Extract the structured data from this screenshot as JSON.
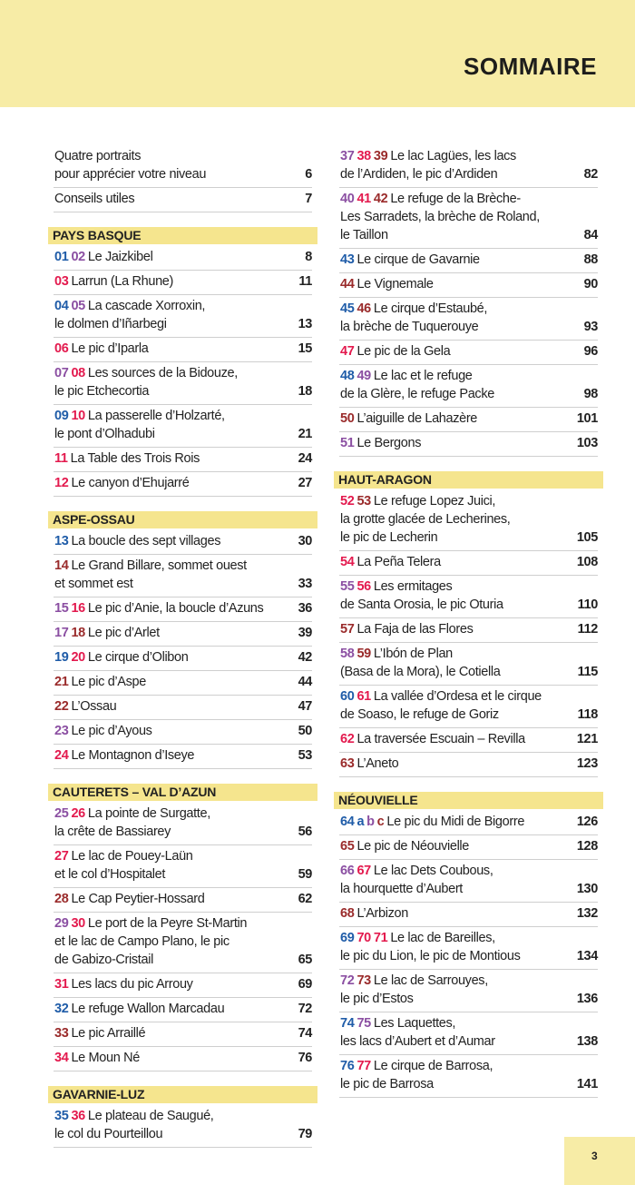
{
  "header": {
    "title": "SOMMAIRE"
  },
  "colors": {
    "blue": "#1f5ca8",
    "pink": "#e31a4e",
    "violet": "#8b4fa2",
    "red": "#9a2b2b",
    "band": "#f7eca6",
    "section": "#f5e58e"
  },
  "page_number": "3",
  "columns": [
    [
      {
        "type": "entry",
        "nums": [],
        "title": "Quatre portraits\npour apprécier votre niveau",
        "page": "6"
      },
      {
        "type": "entry",
        "nums": [],
        "title": "Conseils utiles",
        "page": "7"
      },
      {
        "type": "section",
        "label": "PAYS BASQUE"
      },
      {
        "type": "entry",
        "nums": [
          [
            "01",
            "blue"
          ],
          [
            "02",
            "violet"
          ]
        ],
        "title": "Le Jaizkibel",
        "page": "8"
      },
      {
        "type": "entry",
        "nums": [
          [
            "03",
            "pink"
          ]
        ],
        "title": "Larrun (La Rhune)",
        "page": "11"
      },
      {
        "type": "entry",
        "nums": [
          [
            "04",
            "blue"
          ],
          [
            "05",
            "violet"
          ]
        ],
        "title": "La cascade Xorroxin,\nle dolmen d’Iñarbegi",
        "page": "13"
      },
      {
        "type": "entry",
        "nums": [
          [
            "06",
            "pink"
          ]
        ],
        "title": "Le pic d’Iparla",
        "page": "15"
      },
      {
        "type": "entry",
        "nums": [
          [
            "07",
            "violet"
          ],
          [
            "08",
            "pink"
          ]
        ],
        "title": "Les sources de la Bidouze,\nle pic Etchecortia",
        "page": "18"
      },
      {
        "type": "entry",
        "nums": [
          [
            "09",
            "blue"
          ],
          [
            "10",
            "pink"
          ]
        ],
        "title": "La passerelle d’Holzarté,\nle pont d’Olhadubi",
        "page": "21"
      },
      {
        "type": "entry",
        "nums": [
          [
            "11",
            "pink"
          ]
        ],
        "title": "La Table des Trois Rois",
        "page": "24"
      },
      {
        "type": "entry",
        "nums": [
          [
            "12",
            "pink"
          ]
        ],
        "title": "Le canyon d’Ehujarré",
        "page": "27"
      },
      {
        "type": "section",
        "label": "ASPE-OSSAU"
      },
      {
        "type": "entry",
        "nums": [
          [
            "13",
            "blue"
          ]
        ],
        "title": "La boucle des sept villages",
        "page": "30"
      },
      {
        "type": "entry",
        "nums": [
          [
            "14",
            "red"
          ]
        ],
        "title": "Le Grand Billare, sommet ouest\net sommet est",
        "page": "33"
      },
      {
        "type": "entry",
        "nums": [
          [
            "15",
            "violet"
          ],
          [
            "16",
            "pink"
          ]
        ],
        "title": "Le pic d’Anie, la boucle d’Azuns",
        "page": "36"
      },
      {
        "type": "entry",
        "nums": [
          [
            "17",
            "violet"
          ],
          [
            "18",
            "red"
          ]
        ],
        "title": "Le pic d’Arlet",
        "page": "39"
      },
      {
        "type": "entry",
        "nums": [
          [
            "19",
            "blue"
          ],
          [
            "20",
            "pink"
          ]
        ],
        "title": "Le cirque d’Olibon",
        "page": "42"
      },
      {
        "type": "entry",
        "nums": [
          [
            "21",
            "red"
          ]
        ],
        "title": "Le pic d’Aspe",
        "page": "44"
      },
      {
        "type": "entry",
        "nums": [
          [
            "22",
            "red"
          ]
        ],
        "title": "L’Ossau",
        "page": "47"
      },
      {
        "type": "entry",
        "nums": [
          [
            "23",
            "violet"
          ]
        ],
        "title": "Le pic d’Ayous",
        "page": "50"
      },
      {
        "type": "entry",
        "nums": [
          [
            "24",
            "pink"
          ]
        ],
        "title": "Le Montagnon d’Iseye",
        "page": "53"
      },
      {
        "type": "section",
        "label": "CAUTERETS – VAL D’AZUN"
      },
      {
        "type": "entry",
        "nums": [
          [
            "25",
            "violet"
          ],
          [
            "26",
            "pink"
          ]
        ],
        "title": "La pointe de Surgatte,\nla crête de Bassiarey",
        "page": "56"
      },
      {
        "type": "entry",
        "nums": [
          [
            "27",
            "pink"
          ]
        ],
        "title": "Le lac de Pouey-Laün\net le col d’Hospitalet",
        "page": "59"
      },
      {
        "type": "entry",
        "nums": [
          [
            "28",
            "red"
          ]
        ],
        "title": "Le Cap Peytier-Hossard",
        "page": "62"
      },
      {
        "type": "entry",
        "nums": [
          [
            "29",
            "violet"
          ],
          [
            "30",
            "pink"
          ]
        ],
        "title": "Le port de la Peyre St-Martin\net le lac de Campo Plano, le pic\nde Gabizo-Cristail",
        "page": "65"
      },
      {
        "type": "entry",
        "nums": [
          [
            "31",
            "pink"
          ]
        ],
        "title": "Les lacs du pic Arrouy",
        "page": "69"
      },
      {
        "type": "entry",
        "nums": [
          [
            "32",
            "blue"
          ]
        ],
        "title": "Le refuge Wallon Marcadau",
        "page": "72"
      },
      {
        "type": "entry",
        "nums": [
          [
            "33",
            "red"
          ]
        ],
        "title": "Le pic Arraillé",
        "page": "74"
      },
      {
        "type": "entry",
        "nums": [
          [
            "34",
            "pink"
          ]
        ],
        "title": "Le Moun Né",
        "page": "76"
      },
      {
        "type": "section",
        "label": "GAVARNIE-LUZ"
      },
      {
        "type": "entry",
        "nums": [
          [
            "35",
            "blue"
          ],
          [
            "36",
            "pink"
          ]
        ],
        "title": "Le plateau de Saugué,\nle col du Pourteillou",
        "page": "79"
      }
    ],
    [
      {
        "type": "entry",
        "nums": [
          [
            "37",
            "violet"
          ],
          [
            "38",
            "pink"
          ],
          [
            "39",
            "red"
          ]
        ],
        "title": "Le lac Lagües, les lacs\nde l’Ardiden, le pic d’Ardiden",
        "page": "82"
      },
      {
        "type": "entry",
        "nums": [
          [
            "40",
            "violet"
          ],
          [
            "41",
            "pink"
          ],
          [
            "42",
            "red"
          ]
        ],
        "title": "Le refuge de la Brèche-\nLes Sarradets, la brèche de Roland,\nle Taillon",
        "page": "84"
      },
      {
        "type": "entry",
        "nums": [
          [
            "43",
            "blue"
          ]
        ],
        "title": "Le cirque de Gavarnie",
        "page": "88"
      },
      {
        "type": "entry",
        "nums": [
          [
            "44",
            "red"
          ]
        ],
        "title": "Le Vignemale",
        "page": "90"
      },
      {
        "type": "entry",
        "nums": [
          [
            "45",
            "blue"
          ],
          [
            "46",
            "red"
          ]
        ],
        "title": "Le cirque d’Estaubé,\nla brèche de Tuquerouye",
        "page": "93"
      },
      {
        "type": "entry",
        "nums": [
          [
            "47",
            "pink"
          ]
        ],
        "title": "Le pic de la Gela",
        "page": "96"
      },
      {
        "type": "entry",
        "nums": [
          [
            "48",
            "blue"
          ],
          [
            "49",
            "violet"
          ]
        ],
        "title": "Le lac et le refuge\nde la Glère, le refuge Packe",
        "page": "98"
      },
      {
        "type": "entry",
        "nums": [
          [
            "50",
            "red"
          ]
        ],
        "title": "L’aiguille de Lahazère",
        "page": "101"
      },
      {
        "type": "entry",
        "nums": [
          [
            "51",
            "violet"
          ]
        ],
        "title": "Le Bergons",
        "page": "103"
      },
      {
        "type": "section",
        "label": "HAUT-ARAGON"
      },
      {
        "type": "entry",
        "nums": [
          [
            "52",
            "pink"
          ],
          [
            "53",
            "red"
          ]
        ],
        "title": "Le refuge Lopez Juici,\nla grotte glacée de Lecherines,\nle pic de Lecherin",
        "page": "105"
      },
      {
        "type": "entry",
        "nums": [
          [
            "54",
            "pink"
          ]
        ],
        "title": "La Peña Telera",
        "page": "108"
      },
      {
        "type": "entry",
        "nums": [
          [
            "55",
            "violet"
          ],
          [
            "56",
            "pink"
          ]
        ],
        "title": "Les ermitages\nde Santa Orosia, le pic Oturia",
        "page": "110"
      },
      {
        "type": "entry",
        "nums": [
          [
            "57",
            "red"
          ]
        ],
        "title": "La Faja de las Flores",
        "page": "112"
      },
      {
        "type": "entry",
        "nums": [
          [
            "58",
            "violet"
          ],
          [
            "59",
            "red"
          ]
        ],
        "title": "L’Ibón de Plan\n(Basa de la Mora), le Cotiella",
        "page": "115"
      },
      {
        "type": "entry",
        "nums": [
          [
            "60",
            "blue"
          ],
          [
            "61",
            "pink"
          ]
        ],
        "title": "La vallée d’Ordesa et le cirque\nde Soaso, le refuge de Goriz",
        "page": "118"
      },
      {
        "type": "entry",
        "nums": [
          [
            "62",
            "pink"
          ]
        ],
        "title": "La traversée Escuain – Revilla",
        "page": "121"
      },
      {
        "type": "entry",
        "nums": [
          [
            "63",
            "red"
          ]
        ],
        "title": "L’Aneto",
        "page": "123"
      },
      {
        "type": "section",
        "label": "NÉOUVIELLE"
      },
      {
        "type": "entry",
        "nums": [
          [
            "64",
            "blue"
          ],
          [
            "a",
            "blue"
          ],
          [
            "b",
            "violet"
          ],
          [
            "c",
            "red"
          ]
        ],
        "title": "Le pic du Midi de Bigorre",
        "page": "126"
      },
      {
        "type": "entry",
        "nums": [
          [
            "65",
            "red"
          ]
        ],
        "title": "Le pic de Néouvielle",
        "page": "128"
      },
      {
        "type": "entry",
        "nums": [
          [
            "66",
            "violet"
          ],
          [
            "67",
            "pink"
          ]
        ],
        "title": "Le lac Dets Coubous,\nla hourquette d’Aubert",
        "page": "130"
      },
      {
        "type": "entry",
        "nums": [
          [
            "68",
            "red"
          ]
        ],
        "title": "L’Arbizon",
        "page": "132"
      },
      {
        "type": "entry",
        "nums": [
          [
            "69",
            "blue"
          ],
          [
            "70",
            "pink"
          ],
          [
            "71",
            "pink"
          ]
        ],
        "title": "Le lac de Bareilles,\nle pic du Lion, le pic de Montious",
        "page": "134"
      },
      {
        "type": "entry",
        "nums": [
          [
            "72",
            "violet"
          ],
          [
            "73",
            "red"
          ]
        ],
        "title": "Le lac de Sarrouyes,\nle pic d’Estos",
        "page": "136"
      },
      {
        "type": "entry",
        "nums": [
          [
            "74",
            "blue"
          ],
          [
            "75",
            "violet"
          ]
        ],
        "title": "Les Laquettes,\nles lacs d’Aubert et d’Aumar",
        "page": "138"
      },
      {
        "type": "entry",
        "nums": [
          [
            "76",
            "blue"
          ],
          [
            "77",
            "pink"
          ]
        ],
        "title": "Le cirque de Barrosa,\nle pic de Barrosa",
        "page": "141"
      }
    ]
  ]
}
